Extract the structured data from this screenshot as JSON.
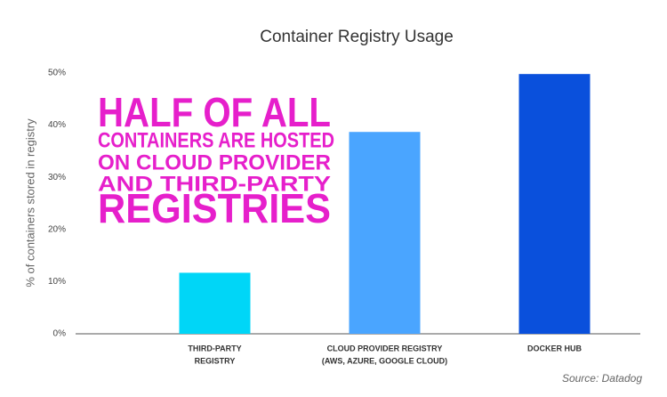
{
  "chart_data": {
    "type": "bar",
    "title": "Container Registry Usage",
    "y_label": "% of containers stored in registry",
    "categories": [
      [
        "THIRD-PARTY",
        "REGISTRY"
      ],
      [
        "CLOUD PROVIDER REGISTRY",
        "(AWS, AZURE, GOOGLE CLOUD)"
      ],
      [
        "DOCKER HUB"
      ]
    ],
    "values": [
      11.7,
      38.7,
      49.8
    ],
    "colors": [
      "#00d6f7",
      "#4aa5ff",
      "#0a50dc"
    ],
    "ylim": [
      0,
      50
    ],
    "yticks": [
      {
        "value": 0,
        "label": "0%"
      },
      {
        "value": 10,
        "label": "10%"
      },
      {
        "value": 20,
        "label": "20%"
      },
      {
        "value": 30,
        "label": "30%"
      },
      {
        "value": 40,
        "label": "40%"
      },
      {
        "value": 50,
        "label": "50%"
      }
    ],
    "grid": false,
    "annotation": [
      "HALF OF ALL",
      "CONTAINERS ARE HOSTED",
      "ON CLOUD PROVIDER",
      "AND THIRD-PARTY",
      "REGISTRIES"
    ],
    "annotation_color": "#e61fcb",
    "source": "Source: Datadog"
  }
}
